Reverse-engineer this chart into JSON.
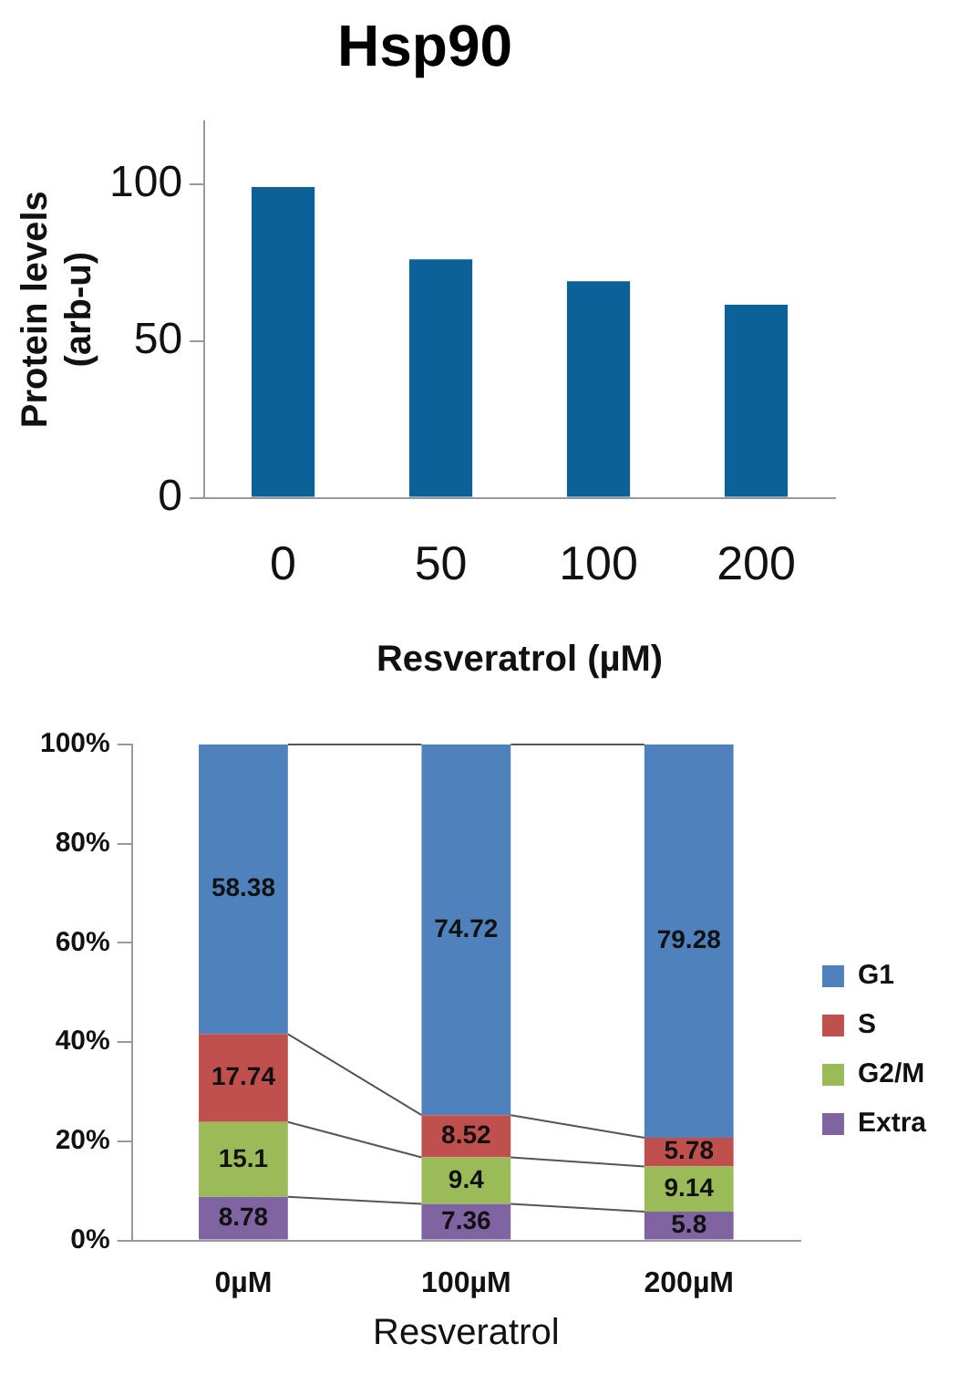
{
  "chart_data": [
    {
      "type": "bar",
      "title": "Hsp90",
      "xlabel": "Resveratrol (µM)",
      "ylabel": "Protein levels\n(arb-u)",
      "categories": [
        "0",
        "50",
        "100",
        "200"
      ],
      "values": [
        99,
        76,
        69,
        61.5
      ],
      "color": "#0c6199",
      "ylim": [
        0,
        120
      ],
      "yticks": [
        0,
        50,
        100
      ],
      "grid": false,
      "legend": false
    },
    {
      "type": "bar",
      "stacked": true,
      "xlabel": "Resveratrol",
      "categories": [
        "0µM",
        "100µM",
        "200µM"
      ],
      "series": [
        {
          "name": "Extra",
          "color": "#8064a2",
          "values": [
            8.78,
            7.36,
            5.8
          ]
        },
        {
          "name": "G2/M",
          "color": "#9bbb59",
          "values": [
            15.1,
            9.4,
            9.14
          ]
        },
        {
          "name": "S",
          "color": "#c0504d",
          "values": [
            17.74,
            8.52,
            5.78
          ]
        },
        {
          "name": "G1",
          "color": "#4f81bd",
          "values": [
            58.38,
            74.72,
            79.28
          ]
        }
      ],
      "ylim": [
        0,
        100
      ],
      "yticks": [
        {
          "value": 0,
          "label": "0%"
        },
        {
          "value": 20,
          "label": "20%"
        },
        {
          "value": 40,
          "label": "40%"
        },
        {
          "value": 60,
          "label": "60%"
        },
        {
          "value": 80,
          "label": "80%"
        },
        {
          "value": 100,
          "label": "100%"
        }
      ],
      "grid": false,
      "legend": "right",
      "data_labels": true
    }
  ]
}
